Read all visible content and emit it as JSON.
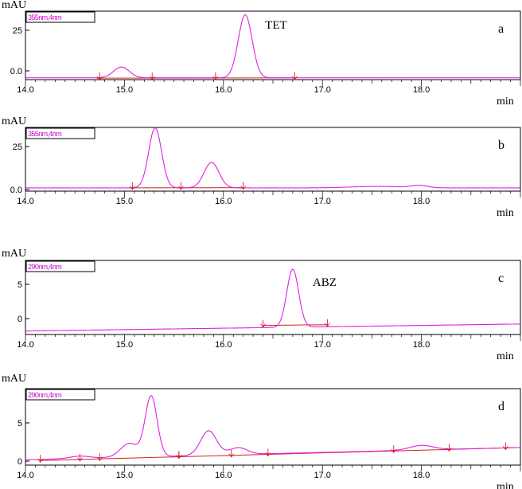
{
  "chart_data": [
    {
      "type": "line",
      "panel_label": "a",
      "y_unit": "mAU",
      "x_unit": "min",
      "wavelength_box": "355nm,4nm",
      "xlim": [
        14.0,
        19.0
      ],
      "ylim": [
        -5,
        33
      ],
      "xticks": [
        "14.0",
        "15.0",
        "16.0",
        "17.0",
        "18.0"
      ],
      "yticks": [
        "25",
        "0.0"
      ],
      "colors": {
        "signal": "#e020e0",
        "baseline": "#d42020",
        "axis": "#000000"
      },
      "baseline": {
        "from": [
          14.72,
          -4.2
        ],
        "to": [
          16.72,
          -4.0
        ]
      },
      "signal_base": -4.0,
      "peaks": [
        {
          "label": "",
          "rt": 14.97,
          "height": 6.0,
          "width": 0.08
        },
        {
          "label": "TET",
          "rt": 16.22,
          "height": 35.0,
          "width": 0.07
        }
      ],
      "integration_marks": [
        14.75,
        15.28,
        15.92,
        16.72
      ]
    },
    {
      "type": "line",
      "panel_label": "b",
      "y_unit": "mAU",
      "x_unit": "min",
      "wavelength_box": "355nm,4nm",
      "xlim": [
        14.0,
        19.0
      ],
      "ylim": [
        -2,
        33
      ],
      "xticks": [
        "14.0",
        "15.0",
        "16.0",
        "17.0",
        "18.0"
      ],
      "yticks": [
        "25",
        "0.0"
      ],
      "colors": {
        "signal": "#e020e0",
        "baseline": "#d42020",
        "axis": "#000000"
      },
      "baseline": {
        "from": [
          15.05,
          -0.2
        ],
        "to": [
          16.2,
          -0.1
        ]
      },
      "signal_base": -0.2,
      "peaks": [
        {
          "label": "",
          "rt": 15.31,
          "height": 33.0,
          "width": 0.065
        },
        {
          "label": "",
          "rt": 15.88,
          "height": 14.0,
          "width": 0.075
        },
        {
          "label": "",
          "rt": 17.55,
          "height": 0.8,
          "width": 0.25
        },
        {
          "label": "",
          "rt": 17.98,
          "height": 1.3,
          "width": 0.08
        }
      ],
      "integration_marks": [
        15.08,
        15.57,
        16.2
      ]
    },
    {
      "type": "line",
      "panel_label": "c",
      "y_unit": "mAU",
      "x_unit": "min",
      "wavelength_box": "290nm,4nm",
      "xlim": [
        14.0,
        19.0
      ],
      "ylim": [
        -2,
        8.6
      ],
      "xticks": [
        "14.0",
        "15.0",
        "16.0",
        "17.0",
        "18.0"
      ],
      "yticks": [
        "5",
        "0"
      ],
      "colors": {
        "signal": "#e020e0",
        "baseline": "#d42020",
        "axis": "#000000"
      },
      "baseline": {
        "from": [
          16.4,
          -0.7
        ],
        "to": [
          17.05,
          -0.6
        ]
      },
      "signal_base": -1.5,
      "signal_base_rise": 1.0,
      "peaks": [
        {
          "label": "ABZ",
          "rt": 16.7,
          "height": 8.3,
          "width": 0.06
        }
      ],
      "integration_marks": [
        16.4,
        17.05
      ]
    },
    {
      "type": "line",
      "panel_label": "d",
      "y_unit": "mAU",
      "x_unit": "min",
      "wavelength_box": "290nm,4nm",
      "xlim": [
        14.0,
        19.0
      ],
      "ylim": [
        -0.5,
        9.5
      ],
      "xticks": [
        "14.0",
        "15.0",
        "16.0",
        "17.0",
        "18.0"
      ],
      "yticks": [
        "5",
        "0"
      ],
      "colors": {
        "signal": "#e020e0",
        "baseline": "#d42020",
        "axis": "#000000"
      },
      "baseline": {
        "from": [
          14.15,
          0.1
        ],
        "to": [
          19.0,
          1.8
        ]
      },
      "signal_base": 0.2,
      "signal_base_rise": 1.6,
      "peaks": [
        {
          "label": "",
          "rt": 15.05,
          "height": 1.8,
          "width": 0.09
        },
        {
          "label": "",
          "rt": 15.27,
          "height": 7.9,
          "width": 0.06
        },
        {
          "label": "",
          "rt": 15.85,
          "height": 3.2,
          "width": 0.08
        },
        {
          "label": "",
          "rt": 16.15,
          "height": 0.9,
          "width": 0.09
        },
        {
          "label": "",
          "rt": 14.55,
          "height": 0.3,
          "width": 0.1
        },
        {
          "label": "",
          "rt": 18.0,
          "height": 0.6,
          "width": 0.12
        }
      ],
      "integration_marks": [
        14.15,
        14.55,
        14.75,
        15.55,
        15.55,
        16.08,
        16.45,
        17.72,
        18.28,
        18.85
      ]
    }
  ]
}
